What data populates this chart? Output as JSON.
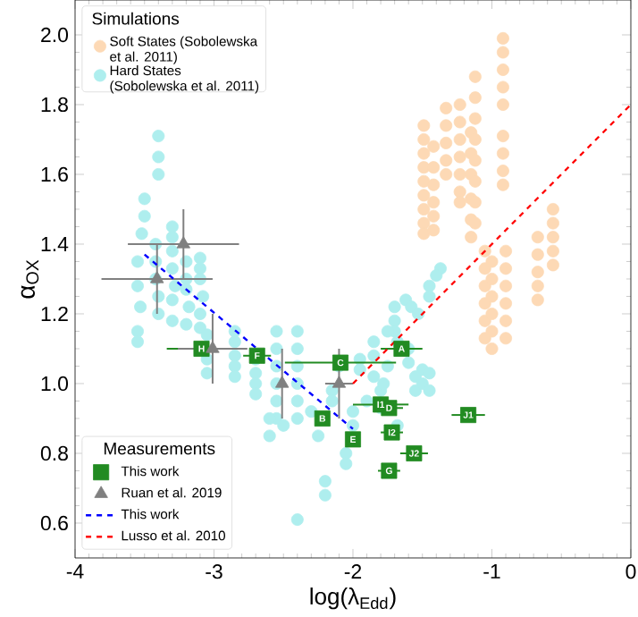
{
  "chart_data": {
    "type": "scatter",
    "xlabel": "log(λ$_{Edd}$)",
    "ylabel": "α$_{OX}$",
    "legend_title": "Simulations",
    "legend": "left",
    "xlim": [
      -4,
      0
    ],
    "ylim": [
      0.5,
      2.1
    ],
    "xticks": [
      {
        "value": -4,
        "label": "-4"
      },
      {
        "value": -3,
        "label": "-3"
      },
      {
        "value": -2,
        "label": "-2"
      },
      {
        "value": -1,
        "label": "-1"
      },
      {
        "value": 0,
        "label": "0"
      }
    ],
    "yticks": [
      {
        "value": 0.6,
        "label": "0.6"
      },
      {
        "value": 0.8,
        "label": "0.8"
      },
      {
        "value": 1.0,
        "label": "1.0"
      },
      {
        "value": 1.2,
        "label": "1.2"
      },
      {
        "value": 1.4,
        "label": "1.4"
      },
      {
        "value": 1.6,
        "label": "1.6"
      },
      {
        "value": 1.8,
        "label": "1.8"
      },
      {
        "value": 2.0,
        "label": "2.0"
      }
    ],
    "series": [
      {
        "name": "Soft States (Sobolewska et al. 2011)",
        "color": "#fdd9b5",
        "marker": "circle",
        "x": [
          -1.49,
          -1.49,
          -1.49,
          -1.49,
          -1.49,
          -1.49,
          -1.49,
          -1.49,
          -1.49,
          -1.42,
          -1.42,
          -1.42,
          -1.42,
          -1.42,
          -1.42,
          -1.33,
          -1.33,
          -1.33,
          -1.33,
          -1.33,
          -1.23,
          -1.23,
          -1.23,
          -1.23,
          -1.23,
          -1.23,
          -1.23,
          -1.15,
          -1.15,
          -1.15,
          -1.15,
          -1.15,
          -1.15,
          -1.12,
          -1.12,
          -1.12,
          -1.12,
          -1.12,
          -1.12,
          -1.12,
          -1.12,
          -1.05,
          -1.05,
          -1.05,
          -1.05,
          -1.05,
          -1.05,
          -1.0,
          -1.0,
          -1.0,
          -1.0,
          -1.0,
          -1.0,
          -0.92,
          -0.92,
          -0.92,
          -0.92,
          -0.92,
          -0.92,
          -0.92,
          -0.92,
          -0.92,
          -0.9,
          -0.9,
          -0.9,
          -0.9,
          -0.9,
          -0.9,
          -0.67,
          -0.67,
          -0.67,
          -0.67,
          -0.67,
          -0.56,
          -0.56,
          -0.56,
          -0.56,
          -0.56
        ],
        "values": [
          1.74,
          1.7,
          1.66,
          1.62,
          1.58,
          1.54,
          1.5,
          1.46,
          1.43,
          1.68,
          1.62,
          1.57,
          1.52,
          1.48,
          1.44,
          1.79,
          1.74,
          1.69,
          1.64,
          1.6,
          1.8,
          1.75,
          1.7,
          1.65,
          1.6,
          1.55,
          1.52,
          1.72,
          1.66,
          1.6,
          1.53,
          1.47,
          1.42,
          1.88,
          1.82,
          1.76,
          1.7,
          1.64,
          1.58,
          1.52,
          1.46,
          1.38,
          1.33,
          1.28,
          1.23,
          1.18,
          1.13,
          1.35,
          1.3,
          1.25,
          1.2,
          1.15,
          1.1,
          1.99,
          1.95,
          1.9,
          1.85,
          1.8,
          1.71,
          1.66,
          1.61,
          1.57,
          1.38,
          1.33,
          1.28,
          1.23,
          1.18,
          1.13,
          1.42,
          1.37,
          1.32,
          1.28,
          1.24,
          1.5,
          1.46,
          1.42,
          1.38,
          1.34
        ]
      },
      {
        "name": "Hard States (Sobolewska et al. 2011)",
        "color": "#aeeeee",
        "marker": "circle",
        "x": [
          -3.5,
          -3.5,
          -3.52,
          -3.55,
          -3.55,
          -3.53,
          -3.55,
          -3.55,
          -3.4,
          -3.4,
          -3.4,
          -3.42,
          -3.42,
          -3.42,
          -3.4,
          -3.4,
          -3.3,
          -3.3,
          -3.3,
          -3.3,
          -3.28,
          -3.3,
          -3.3,
          -3.2,
          -3.2,
          -3.2,
          -3.18,
          -3.2,
          -3.1,
          -3.1,
          -3.1,
          -3.08,
          -3.1,
          -3.1,
          -3.05,
          -3.05,
          -3.05,
          -2.85,
          -2.85,
          -2.85,
          -2.85,
          -2.85,
          -2.7,
          -2.7,
          -2.7,
          -2.7,
          -2.55,
          -2.55,
          -2.55,
          -2.55,
          -2.55,
          -2.55,
          -2.4,
          -2.4,
          -2.4,
          -2.4,
          -2.4,
          -2.4,
          -2.3,
          -2.25,
          -2.15,
          -2.15,
          -2.0,
          -2.0,
          -2.05,
          -2.05,
          -2.2,
          -2.2,
          -2.4,
          -2.6,
          -2.6,
          -2.5,
          -1.95,
          -1.95,
          -1.85,
          -1.85,
          -1.85,
          -1.8,
          -1.78,
          -1.7,
          -1.7,
          -1.68,
          -1.7,
          -1.75,
          -1.75,
          -1.6,
          -1.6,
          -1.55,
          -1.55,
          -1.5,
          -1.5,
          -1.45,
          -1.45,
          -1.62,
          -1.58,
          -1.68,
          -1.8,
          -1.9,
          -2.1,
          -1.37,
          -1.4,
          -1.45,
          -1.45,
          -1.53
        ],
        "values": [
          1.53,
          1.48,
          1.43,
          1.35,
          1.28,
          1.22,
          1.15,
          1.12,
          1.71,
          1.65,
          1.6,
          1.4,
          1.35,
          1.3,
          1.25,
          1.2,
          1.45,
          1.42,
          1.38,
          1.33,
          1.28,
          1.24,
          1.18,
          1.35,
          1.3,
          1.27,
          1.22,
          1.17,
          1.36,
          1.33,
          1.3,
          1.25,
          1.2,
          1.16,
          1.14,
          1.07,
          1.03,
          1.15,
          1.12,
          1.08,
          1.05,
          1.02,
          1.07,
          1.03,
          1.0,
          0.97,
          1.15,
          1.1,
          1.05,
          1.0,
          0.95,
          0.9,
          1.15,
          1.1,
          1.05,
          1.0,
          0.95,
          0.9,
          0.92,
          0.85,
          0.98,
          0.95,
          0.92,
          0.88,
          0.8,
          0.77,
          0.72,
          0.68,
          0.61,
          0.9,
          0.85,
          0.88,
          1.07,
          1.04,
          1.12,
          1.08,
          1.02,
          0.98,
          1.0,
          1.18,
          1.15,
          1.12,
          1.22,
          1.05,
          1.15,
          1.1,
          1.06,
          1.02,
          0.98,
          1.04,
          1.0,
          1.03,
          0.98,
          1.24,
          1.22,
          0.88,
          0.93,
          0.95,
          1.05,
          1.33,
          1.31,
          1.28,
          1.25,
          1.2
        ]
      },
      {
        "name": "This work",
        "color": "#228b22",
        "marker": "square",
        "x": [
          -3.09,
          -2.69,
          -2.22,
          -2.0,
          -2.09,
          -1.65,
          -1.8,
          -1.74,
          -1.72,
          -1.56,
          -1.17,
          -1.74
        ],
        "values": [
          1.1,
          1.08,
          0.9,
          0.84,
          1.06,
          1.1,
          0.94,
          0.93,
          0.86,
          0.8,
          0.91,
          0.75
        ],
        "xerrors": [
          0.25,
          0.1,
          0.05,
          null,
          0.4,
          0.15,
          0.2,
          0.1,
          0.08,
          0.1,
          0.12,
          0.08
        ]
      },
      {
        "name": "Ruan et al. 2019",
        "color": "#808080",
        "marker": "triangle",
        "x": [
          -3.41,
          -3.22,
          -3.01,
          -2.51,
          -2.1
        ],
        "values": [
          1.3,
          1.4,
          1.1,
          1.0,
          1.0
        ],
        "errors": [
          0.1,
          0.1,
          0.1,
          0.1,
          0.1
        ],
        "xerrors": [
          0.4,
          0.4,
          0.25,
          null,
          0.1
        ]
      },
      {
        "type": "line",
        "name": "This work",
        "color": "#0000ff",
        "marker": "none",
        "line_style": "dashed",
        "x": [
          -3.5,
          -2.0
        ],
        "values": [
          1.37,
          0.87
        ]
      },
      {
        "type": "line",
        "name": "Lusso et al. 2010",
        "color": "#ff0000",
        "marker": "none",
        "line_style": "dashed",
        "x": [
          -2.0,
          0
        ],
        "values": [
          1.0,
          1.8
        ]
      }
    ],
    "annotations": [
      "Measurements",
      {
        "text": "H",
        "x": -3.09,
        "y": 1.1
      },
      {
        "text": "F",
        "x": -2.69,
        "y": 1.08
      },
      {
        "text": "B",
        "x": -2.22,
        "y": 0.9
      },
      {
        "text": "E",
        "x": -2.0,
        "y": 0.84
      },
      {
        "text": "C",
        "x": -2.09,
        "y": 1.06
      },
      {
        "text": "A",
        "x": -1.65,
        "y": 1.1
      },
      {
        "text": "I1",
        "x": -1.8,
        "y": 0.94
      },
      {
        "text": "D",
        "x": -1.74,
        "y": 0.93
      },
      {
        "text": "I2",
        "x": -1.72,
        "y": 0.86
      },
      {
        "text": "J2",
        "x": -1.56,
        "y": 0.8
      },
      {
        "text": "J1",
        "x": -1.17,
        "y": 0.91
      },
      {
        "text": "G",
        "x": -1.74,
        "y": 0.75
      }
    ]
  }
}
